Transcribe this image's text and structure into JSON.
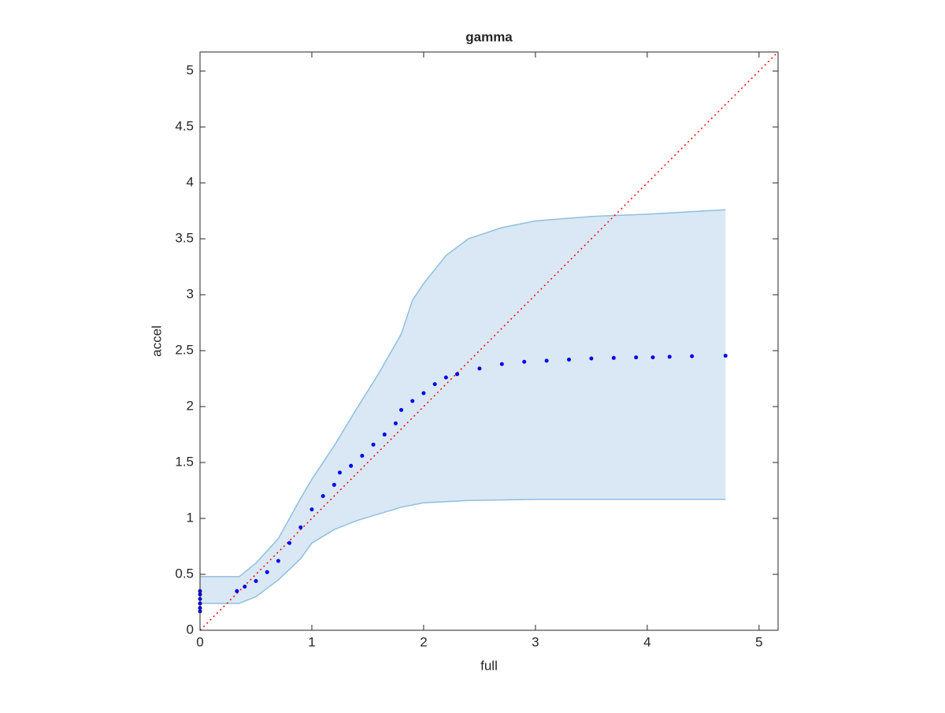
{
  "chart_data": {
    "type": "scatter",
    "title": "gamma",
    "xlabel": "full",
    "ylabel": "accel",
    "xlim": [
      0,
      5.17
    ],
    "ylim": [
      0,
      5.17
    ],
    "xticks": [
      0,
      1,
      2,
      3,
      4,
      5
    ],
    "yticks": [
      0,
      0.5,
      1,
      1.5,
      2,
      2.5,
      3,
      3.5,
      4,
      4.5,
      5
    ],
    "band": {
      "color": "#8fbfe0",
      "fill": "#d9e8f4",
      "x": [
        0,
        0.35,
        0.5,
        0.7,
        0.9,
        1.0,
        1.2,
        1.4,
        1.6,
        1.8,
        1.9,
        2.0,
        2.2,
        2.4,
        2.7,
        3.0,
        3.5,
        4.0,
        4.7
      ],
      "upper": [
        0.48,
        0.48,
        0.6,
        0.82,
        1.18,
        1.35,
        1.65,
        1.98,
        2.3,
        2.65,
        2.95,
        3.1,
        3.35,
        3.5,
        3.6,
        3.66,
        3.7,
        3.72,
        3.76
      ],
      "lower": [
        0.24,
        0.24,
        0.3,
        0.45,
        0.64,
        0.78,
        0.9,
        0.98,
        1.04,
        1.1,
        1.12,
        1.14,
        1.15,
        1.16,
        1.165,
        1.17,
        1.17,
        1.17,
        1.17
      ]
    },
    "reference": {
      "color": "#ff0000",
      "x": [
        0,
        5.17
      ],
      "y": [
        0,
        5.17
      ]
    },
    "points": {
      "color": "#0000ee",
      "x": [
        0,
        0,
        0,
        0,
        0,
        0,
        0.33,
        0.4,
        0.5,
        0.6,
        0.7,
        0.8,
        0.9,
        1.0,
        1.1,
        1.2,
        1.25,
        1.35,
        1.45,
        1.55,
        1.65,
        1.75,
        1.8,
        1.9,
        2.0,
        2.1,
        2.2,
        2.3,
        2.5,
        2.7,
        2.9,
        3.1,
        3.3,
        3.5,
        3.7,
        3.9,
        4.05,
        4.2,
        4.4,
        4.7
      ],
      "y": [
        0.17,
        0.2,
        0.24,
        0.28,
        0.32,
        0.35,
        0.35,
        0.39,
        0.44,
        0.52,
        0.62,
        0.78,
        0.92,
        1.08,
        1.2,
        1.3,
        1.41,
        1.47,
        1.56,
        1.66,
        1.75,
        1.85,
        1.97,
        2.05,
        2.12,
        2.2,
        2.26,
        2.29,
        2.34,
        2.38,
        2.4,
        2.41,
        2.42,
        2.43,
        2.435,
        2.44,
        2.44,
        2.445,
        2.45,
        2.455
      ]
    }
  }
}
